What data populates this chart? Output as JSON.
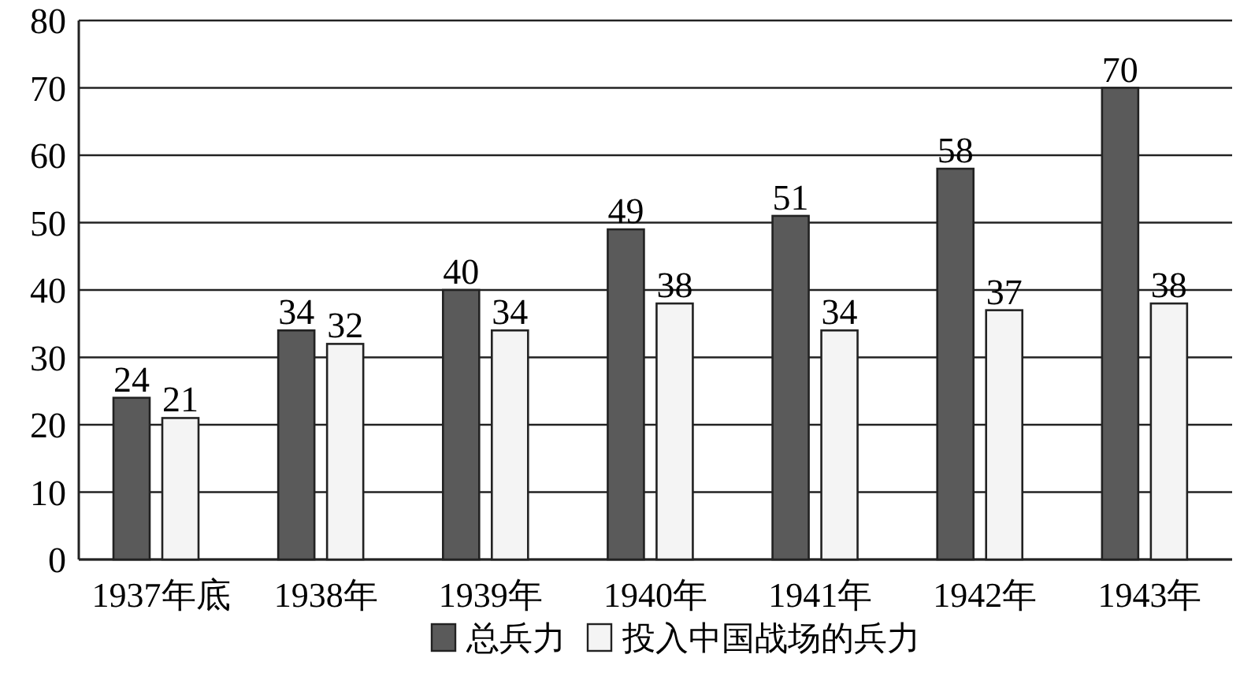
{
  "chart_data": {
    "type": "bar",
    "categories": [
      "1937年底",
      "1938年",
      "1939年",
      "1940年",
      "1941年",
      "1942年",
      "1943年"
    ],
    "series": [
      {
        "name": "总兵力",
        "color": "#5a5a5a",
        "values": [
          24,
          34,
          40,
          49,
          51,
          58,
          70
        ]
      },
      {
        "name": "投入中国战场的兵力",
        "color": "#f4f4f4",
        "values": [
          21,
          32,
          34,
          38,
          34,
          37,
          38
        ]
      }
    ],
    "ylim": [
      0,
      80
    ],
    "yticks": [
      0,
      10,
      20,
      30,
      40,
      50,
      60,
      70,
      80
    ],
    "grid": "y",
    "data_labels": true,
    "legend": "bottom"
  }
}
